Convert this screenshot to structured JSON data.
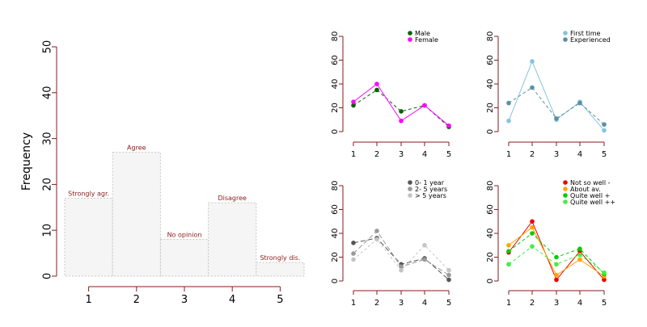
{
  "colors": {
    "axis": "#8b1a1a",
    "bar_fill": "#f5f5f5",
    "bar_border": "#c8c8c8",
    "bar_label": "#8b1a1a"
  },
  "chart_data": [
    {
      "type": "bar",
      "title": "",
      "xlabel": "",
      "ylabel": "Frequency",
      "categories": [
        "1",
        "2",
        "3",
        "4",
        "5"
      ],
      "bar_labels": [
        "Strongly agr.",
        "Agree",
        "No opinion",
        "Disagree",
        "Strongly dis."
      ],
      "values": [
        17,
        27,
        8,
        16,
        3
      ],
      "ylim": [
        0,
        50
      ],
      "yticks": [
        0,
        10,
        20,
        30,
        40,
        50
      ],
      "legend": "none"
    },
    {
      "type": "line",
      "categories": [
        "1",
        "2",
        "3",
        "4",
        "5"
      ],
      "ylim": [
        0,
        80
      ],
      "yticks": [
        0,
        20,
        40,
        60,
        80
      ],
      "legend": "top-right",
      "series": [
        {
          "name": "Male",
          "color": "#006400",
          "dash": "4,3",
          "values": [
            22,
            35,
            17,
            22,
            4
          ]
        },
        {
          "name": "Female",
          "color": "#ff00ff",
          "dash": "",
          "values": [
            25,
            40,
            9,
            22,
            5
          ]
        }
      ]
    },
    {
      "type": "line",
      "categories": [
        "1",
        "2",
        "3",
        "4",
        "5"
      ],
      "ylim": [
        0,
        80
      ],
      "yticks": [
        0,
        20,
        40,
        60,
        80
      ],
      "legend": "top-right",
      "series": [
        {
          "name": "First time",
          "color": "#87c4de",
          "dash": "",
          "values": [
            9,
            59,
            10,
            25,
            1
          ]
        },
        {
          "name": "Experienced",
          "color": "#5a8fa8",
          "dash": "4,3",
          "values": [
            24,
            37,
            11,
            24,
            6
          ]
        }
      ]
    },
    {
      "type": "line",
      "categories": [
        "1",
        "2",
        "3",
        "4",
        "5"
      ],
      "ylim": [
        0,
        80
      ],
      "yticks": [
        0,
        20,
        40,
        60,
        80
      ],
      "legend": "top-right",
      "series": [
        {
          "name": "0- 1 year",
          "color": "#555555",
          "dash": "6,3",
          "values": [
            32,
            36,
            14,
            19,
            1
          ]
        },
        {
          "name": "2- 5 years",
          "color": "#999999",
          "dash": "6,3",
          "values": [
            23,
            42,
            12,
            18,
            5
          ]
        },
        {
          "name": "> 5 years",
          "color": "#c4c4c4",
          "dash": "3,3",
          "values": [
            18,
            35,
            9,
            30,
            9
          ]
        }
      ]
    },
    {
      "type": "line",
      "categories": [
        "1",
        "2",
        "3",
        "4",
        "5"
      ],
      "ylim": [
        0,
        80
      ],
      "yticks": [
        0,
        20,
        40,
        60,
        80
      ],
      "legend": "top-right",
      "series": [
        {
          "name": "Not so well -",
          "color": "#ee0000",
          "dash": "",
          "values": [
            24,
            50,
            1,
            25,
            1
          ]
        },
        {
          "name": "About av.",
          "color": "#ffa500",
          "dash": "",
          "values": [
            30,
            45,
            5,
            18,
            4
          ]
        },
        {
          "name": "Quite well +",
          "color": "#00cc00",
          "dash": "4,3",
          "values": [
            25,
            40,
            20,
            27,
            6
          ]
        },
        {
          "name": "Quite well ++",
          "color": "#44ee44",
          "dash": "4,3",
          "values": [
            14,
            29,
            14,
            22,
            7
          ]
        }
      ]
    }
  ]
}
